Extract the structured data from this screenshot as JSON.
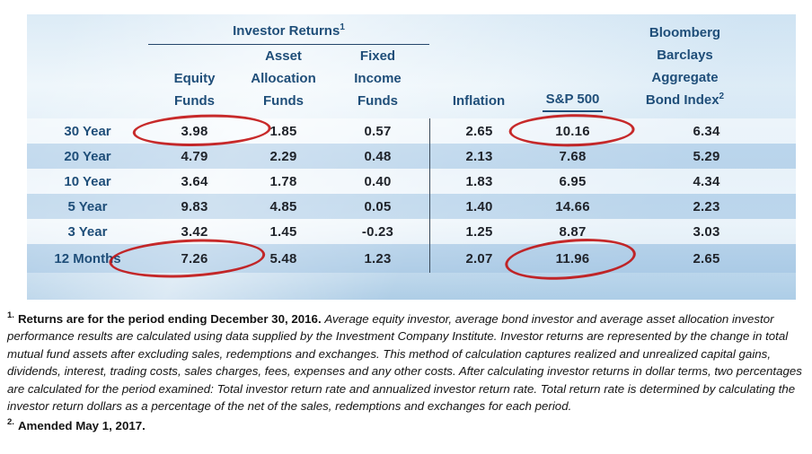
{
  "table": {
    "group_header": {
      "label": "Investor Returns",
      "sup": "1"
    },
    "columns": [
      {
        "lines": [
          "Equity",
          "Funds"
        ]
      },
      {
        "lines": [
          "Asset",
          "Allocation",
          "Funds"
        ]
      },
      {
        "lines": [
          "Fixed",
          "Income",
          "Funds"
        ]
      },
      {
        "lines": [
          "Inflation"
        ]
      },
      {
        "lines": [
          "S&P 500"
        ],
        "underlined": true
      },
      {
        "lines": [
          "Bloomberg",
          "Barclays",
          "Aggregate",
          "Bond Index"
        ],
        "sup": "2"
      }
    ],
    "rows": [
      {
        "label": "30 Year",
        "values": [
          "3.98",
          "1.85",
          "0.57",
          "2.65",
          "10.16",
          "6.34"
        ]
      },
      {
        "label": "20 Year",
        "values": [
          "4.79",
          "2.29",
          "0.48",
          "2.13",
          "7.68",
          "5.29"
        ]
      },
      {
        "label": "10 Year",
        "values": [
          "3.64",
          "1.78",
          "0.40",
          "1.83",
          "6.95",
          "4.34"
        ]
      },
      {
        "label": "5 Year",
        "values": [
          "9.83",
          "4.85",
          "0.05",
          "1.40",
          "14.66",
          "2.23"
        ]
      },
      {
        "label": "3 Year",
        "values": [
          "3.42",
          "1.45",
          "-0.23",
          "1.25",
          "8.87",
          "3.03"
        ]
      },
      {
        "label": "12 Months",
        "values": [
          "7.26",
          "5.48",
          "1.23",
          "2.07",
          "11.96",
          "2.65"
        ]
      }
    ],
    "circled_cells": [
      {
        "row": 0,
        "col": 0
      },
      {
        "row": 0,
        "col": 4
      },
      {
        "row": 5,
        "col": 0
      },
      {
        "row": 5,
        "col": 4
      }
    ]
  },
  "footnotes": {
    "f1_marker": "1.",
    "f1_bold": "Returns are for the period ending December 30, 2016. ",
    "f1_italic": "Average equity investor, average bond investor and average asset allocation investor performance results are calculated using data supplied by the Investment Company Institute. Investor returns are represented by the change in total mutual fund assets after excluding sales, redemptions and exchanges. This method of calculation captures realized and unrealized capital gains, dividends, interest, trading costs, sales charges, fees, expenses and any other costs. After calculating investor returns in dollar terms, two percentages are calculated for the period examined: Total investor return rate and annualized investor return rate. Total return rate is determined by calculating the investor return dollars as a percentage of the net of the sales, redemptions and exchanges for each period.",
    "f2_marker": "2.",
    "f2_text": "Amended May 1, 2017."
  },
  "colors": {
    "header_text": "#1f4e79",
    "value_text": "#20242b",
    "circle_red": "#c00c0c",
    "table_background_light": "#eef6fb",
    "table_background_dark": "#aecde6"
  }
}
